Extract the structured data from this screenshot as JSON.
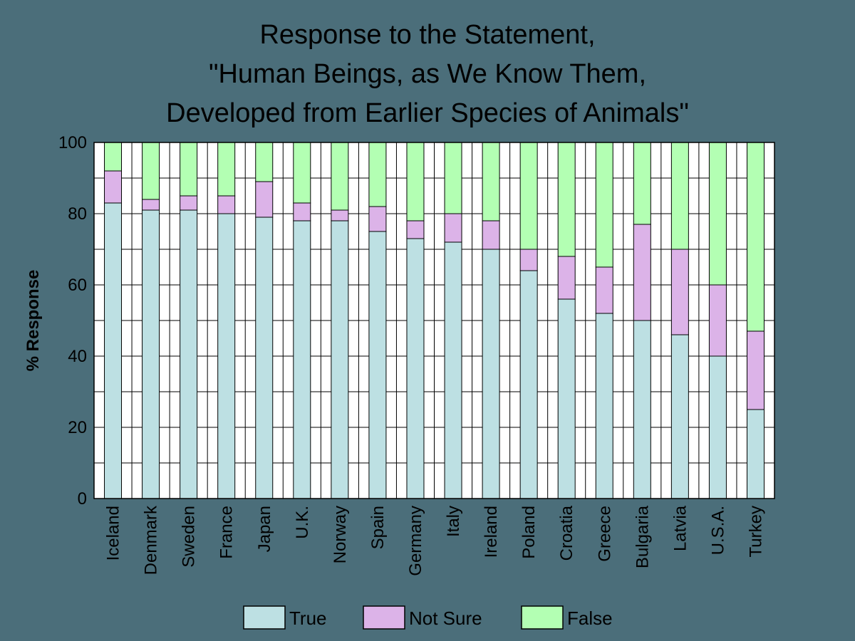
{
  "chart_data": {
    "type": "bar",
    "stacked": true,
    "title_lines": [
      "Response to the Statement,",
      "\"Human Beings, as We Know Them,",
      "Developed from Earlier Species of Animals\""
    ],
    "xlabel": "",
    "ylabel": "% Response",
    "ylim": [
      0,
      100
    ],
    "yticks": [
      0,
      20,
      40,
      60,
      80,
      100
    ],
    "grid": true,
    "legend_position": "bottom",
    "categories": [
      "Iceland",
      "Denmark",
      "Sweden",
      "France",
      "Japan",
      "U.K.",
      "Norway",
      "Spain",
      "Germany",
      "Italy",
      "Ireland",
      "Poland",
      "Croatia",
      "Greece",
      "Bulgaria",
      "Latvia",
      "U.S.A.",
      "Turkey"
    ],
    "series": [
      {
        "name": "True",
        "color": "#bde0e3",
        "values": [
          83,
          81,
          81,
          80,
          79,
          78,
          78,
          75,
          73,
          72,
          70,
          64,
          56,
          52,
          50,
          46,
          40,
          25
        ]
      },
      {
        "name": "Not Sure",
        "color": "#dcb3e8",
        "values": [
          9,
          3,
          4,
          5,
          10,
          5,
          3,
          7,
          5,
          8,
          8,
          6,
          12,
          13,
          27,
          24,
          20,
          22
        ]
      },
      {
        "name": "False",
        "color": "#b3ffb3",
        "values": [
          8,
          16,
          15,
          15,
          11,
          17,
          19,
          18,
          22,
          20,
          22,
          30,
          32,
          35,
          23,
          30,
          40,
          53
        ]
      }
    ]
  }
}
